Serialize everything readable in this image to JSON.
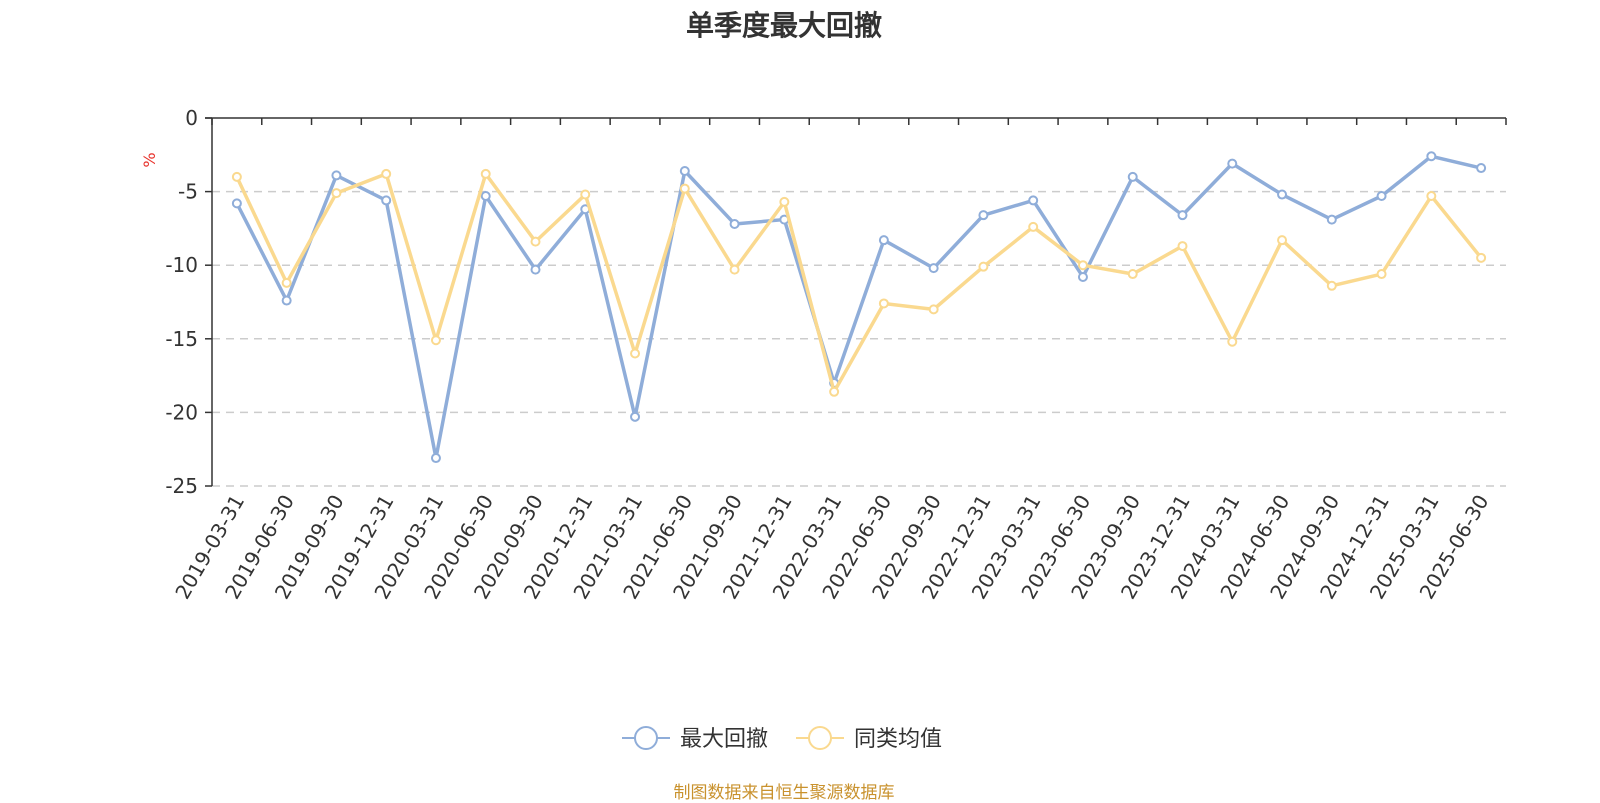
{
  "chart_data": {
    "type": "line",
    "title": "单季度最大回撤",
    "ylabel": "%",
    "ylim": [
      -25,
      0
    ],
    "yticks": [
      0,
      -5,
      -10,
      -15,
      -20,
      -25
    ],
    "grid": true,
    "legend_position": "bottom",
    "categories": [
      "2019-03-31",
      "2019-06-30",
      "2019-09-30",
      "2019-12-31",
      "2020-03-31",
      "2020-06-30",
      "2020-09-30",
      "2020-12-31",
      "2021-03-31",
      "2021-06-30",
      "2021-09-30",
      "2021-12-31",
      "2022-03-31",
      "2022-06-30",
      "2022-09-30",
      "2022-12-31",
      "2023-03-31",
      "2023-06-30",
      "2023-09-30",
      "2023-12-31",
      "2024-03-31",
      "2024-06-30",
      "2024-09-30",
      "2024-12-31",
      "2025-03-31",
      "2025-06-30"
    ],
    "series": [
      {
        "name": "最大回撤",
        "color": "#8fadd9",
        "values": [
          -5.8,
          -12.4,
          -3.9,
          -5.6,
          -23.1,
          -5.3,
          -10.3,
          -6.2,
          -20.3,
          -3.6,
          -7.2,
          -6.9,
          -18.0,
          -8.3,
          -10.2,
          -6.6,
          -5.6,
          -10.8,
          -4.0,
          -6.6,
          -3.1,
          -5.2,
          -6.9,
          -5.3,
          -2.6,
          -3.4
        ]
      },
      {
        "name": "同类均值",
        "color": "#fad98f",
        "values": [
          -4.0,
          -11.2,
          -5.1,
          -3.8,
          -15.1,
          -3.8,
          -8.4,
          -5.2,
          -16.0,
          -4.8,
          -10.3,
          -5.7,
          -18.6,
          -12.6,
          -13.0,
          -10.1,
          -7.4,
          -10.0,
          -10.6,
          -8.7,
          -15.2,
          -8.3,
          -11.4,
          -10.6,
          -5.3,
          -9.5
        ]
      }
    ]
  },
  "footer": {
    "source": "制图数据来自恒生聚源数据库"
  }
}
